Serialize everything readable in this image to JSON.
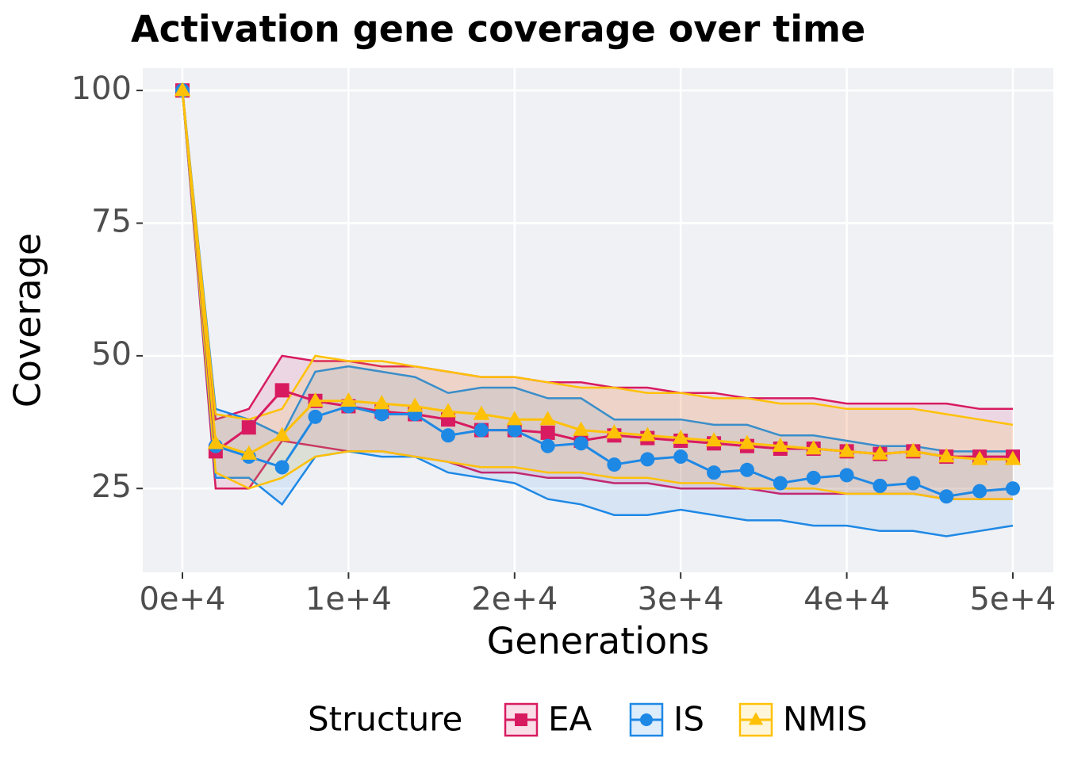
{
  "chart_data": {
    "type": "line",
    "title": "Activation gene coverage over time",
    "x_label": "Generations",
    "y_label": "Coverage",
    "legend_title": "Structure",
    "legend_position": "bottom",
    "grid": true,
    "xlim": [
      -2388,
      52436
    ],
    "ylim": [
      9.2,
      104.2
    ],
    "xticks": [
      {
        "value": 0,
        "label": "0e+4"
      },
      {
        "value": 10000,
        "label": "1e+4"
      },
      {
        "value": 20000,
        "label": "2e+4"
      },
      {
        "value": 30000,
        "label": "3e+4"
      },
      {
        "value": 40000,
        "label": "4e+4"
      },
      {
        "value": 50000,
        "label": "5e+4"
      }
    ],
    "yticks": [
      25,
      50,
      75,
      100
    ],
    "x": [
      0,
      2000,
      4000,
      6000,
      8000,
      10000,
      12000,
      14000,
      16000,
      18000,
      20000,
      22000,
      24000,
      26000,
      28000,
      30000,
      32000,
      34000,
      36000,
      38000,
      40000,
      42000,
      44000,
      46000,
      48000,
      50000
    ],
    "series": [
      {
        "name": "EA",
        "color": "#d81b60",
        "marker": "square",
        "values": [
          100,
          32,
          36.5,
          43.5,
          41.5,
          40.5,
          39.5,
          39,
          38,
          36,
          36,
          35.5,
          34,
          35,
          34.5,
          34,
          33.5,
          33,
          32.5,
          32.5,
          32,
          31.5,
          32,
          31,
          31,
          31
        ],
        "lower": [
          100,
          25,
          25,
          34,
          33,
          32,
          32,
          31,
          30,
          28,
          28,
          27,
          27,
          26,
          26,
          25,
          25,
          25,
          24,
          24,
          24,
          24,
          24,
          23,
          23,
          23
        ],
        "upper": [
          100,
          38,
          40,
          50,
          49,
          49,
          48,
          48,
          47,
          46,
          46,
          45,
          45,
          44,
          44,
          43,
          43,
          42,
          42,
          42,
          41,
          41,
          41,
          41,
          40,
          40
        ]
      },
      {
        "name": "IS",
        "color": "#1e88e5",
        "marker": "circle",
        "values": [
          100,
          33,
          31,
          29,
          38.5,
          40.5,
          39,
          39,
          35,
          36,
          36,
          33,
          33.5,
          29.5,
          30.5,
          31,
          28,
          28.5,
          26,
          27,
          27.5,
          25.5,
          26,
          23.5,
          24.5,
          25
        ],
        "lower": [
          100,
          27,
          27,
          22,
          31,
          32,
          31,
          31,
          28,
          27,
          26,
          23,
          22,
          20,
          20,
          21,
          20,
          19,
          19,
          18,
          18,
          17,
          17,
          16,
          17,
          18
        ],
        "upper": [
          100,
          40,
          38,
          35,
          47,
          48,
          47,
          46,
          43,
          44,
          44,
          42,
          42,
          38,
          38,
          38,
          37,
          37,
          35,
          35,
          34,
          33,
          33,
          32,
          32,
          32
        ]
      },
      {
        "name": "NMIS",
        "color": "#ffc107",
        "marker": "triangle",
        "values": [
          100,
          33.5,
          31.5,
          35,
          41.5,
          41.5,
          41,
          40.5,
          39.5,
          39,
          38,
          38,
          36,
          35.5,
          35,
          34.5,
          34,
          33.5,
          33,
          32.5,
          32,
          31.5,
          32,
          31,
          30.5,
          30.5
        ],
        "lower": [
          100,
          28,
          25,
          27,
          31,
          32,
          32,
          31,
          30,
          29,
          29,
          28,
          28,
          27,
          27,
          26,
          26,
          25,
          25,
          25,
          24,
          24,
          24,
          23,
          23,
          23
        ],
        "upper": [
          100,
          39,
          38,
          40,
          50,
          49,
          49,
          48,
          47,
          46,
          46,
          45,
          44,
          44,
          43,
          43,
          42,
          42,
          41,
          41,
          40,
          40,
          40,
          39,
          38,
          37
        ]
      }
    ]
  }
}
